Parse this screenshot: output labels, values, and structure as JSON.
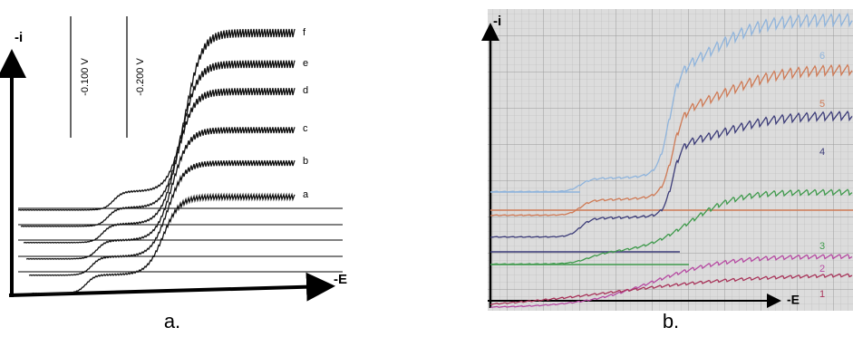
{
  "panel_a": {
    "y_axis_label": "-i",
    "x_axis_label": "-E",
    "potential_markers": [
      "-0.100 V",
      "-0.200 V"
    ],
    "curve_labels": [
      "f",
      "e",
      "d",
      "c",
      "b",
      "a"
    ],
    "caption": "a."
  },
  "panel_b": {
    "y_axis_label": "-i",
    "x_axis_label": "-E",
    "curve_labels": [
      "6",
      "5",
      "4",
      "3",
      "2",
      "1"
    ],
    "caption": "b."
  }
}
